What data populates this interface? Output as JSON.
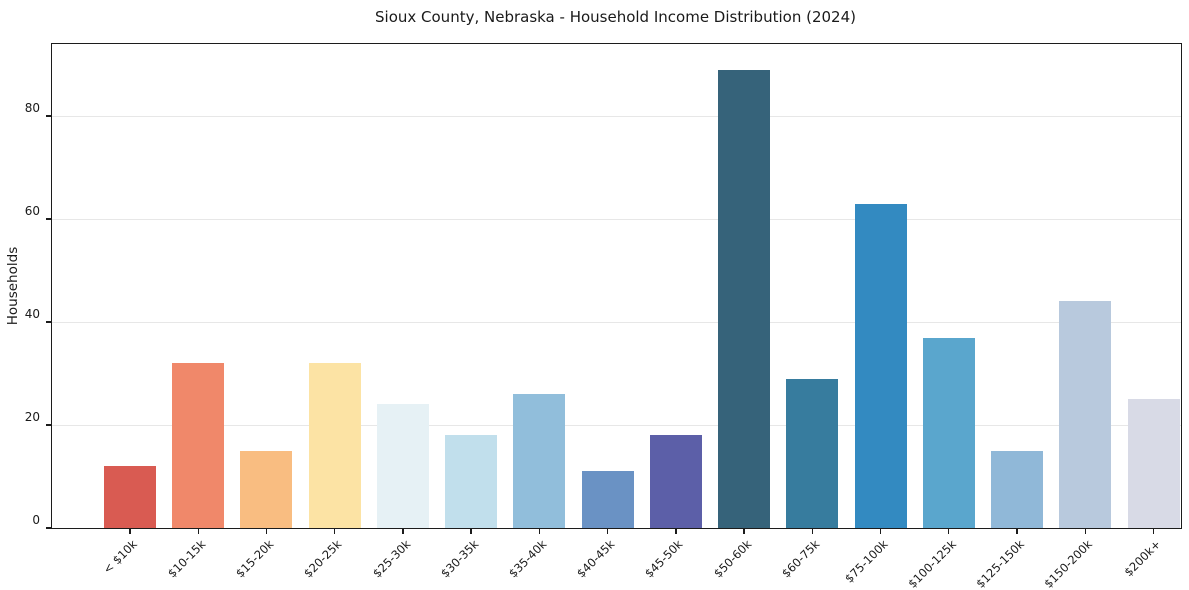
{
  "chart_data": {
    "type": "bar",
    "title": "Sioux County, Nebraska - Household Income Distribution (2024)",
    "xlabel": "",
    "ylabel": "Households",
    "categories": [
      "< $10k",
      "$10-15k",
      "$15-20k",
      "$20-25k",
      "$25-30k",
      "$30-35k",
      "$35-40k",
      "$40-45k",
      "$45-50k",
      "$50-60k",
      "$60-75k",
      "$75-100k",
      "$100-125k",
      "$125-150k",
      "$150-200k",
      "$200k+"
    ],
    "values": [
      12,
      32,
      15,
      32,
      24,
      18,
      26,
      11,
      18,
      89,
      29,
      63,
      37,
      15,
      44,
      25
    ],
    "bar_colors": [
      "#d95b52",
      "#f0886a",
      "#f9bd81",
      "#fce3a4",
      "#e6f1f5",
      "#c1dfec",
      "#91bedb",
      "#6a92c4",
      "#5c5fa8",
      "#36637a",
      "#377c9e",
      "#338ac1",
      "#5aa6cd",
      "#90b8d8",
      "#b8c9dd",
      "#d8dae6"
    ],
    "ylim": [
      0,
      94
    ],
    "yticks": [
      0,
      20,
      40,
      60,
      80
    ],
    "grid": "horizontal",
    "gridline_color": "#e7e7e7",
    "legend": "none"
  }
}
